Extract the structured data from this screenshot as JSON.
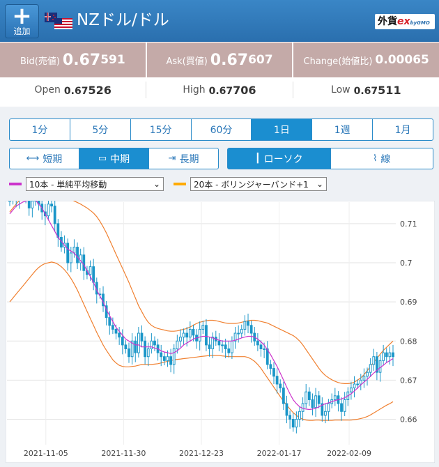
{
  "header": {
    "add_icon": "plus-icon",
    "add_label": "追加",
    "flags": [
      "nz-flag-icon",
      "us-flag-icon"
    ],
    "pair_title": "NZドル/ドル",
    "logo_main": "外貨",
    "logo_ex": "ex",
    "logo_gmo": "byGMO"
  },
  "quotes": {
    "bid_label": "Bid(売値)",
    "bid_big": "0.67",
    "bid_small": "591",
    "ask_label": "Ask(買値)",
    "ask_big": "0.67",
    "ask_small": "607",
    "change_label": "Change(始値比)",
    "change_value": "0.00065"
  },
  "ohl": {
    "open_label": "Open",
    "open_a": "0.67",
    "open_b": "526",
    "high_label": "High",
    "high_a": "0.67",
    "high_b": "706",
    "low_label": "Low",
    "low_a": "0.67",
    "low_b": "511"
  },
  "timeframes": [
    "1分",
    "5分",
    "15分",
    "60分",
    "1日",
    "1週",
    "1月"
  ],
  "selected_timeframe": "1日",
  "periods": [
    "短期",
    "中期",
    "長期"
  ],
  "selected_period": "中期",
  "chart_types": [
    "ローソク",
    "線"
  ],
  "selected_chart_type": "ローソク",
  "indicators": {
    "ma": {
      "label": "10本 - 単純平均移動",
      "color": "#cc33cc"
    },
    "bb": {
      "label": "20本 - ボリンジャーバンド+1",
      "color": "#ffaa00"
    }
  },
  "colors": {
    "accent": "#1b8ed0",
    "header": "#2a6fae",
    "quote_bg": "#c4aaa8",
    "candle": "#1b96c8",
    "bb_band": "#f08030",
    "ma": "#cc33cc"
  },
  "chart_data": {
    "type": "candlestick",
    "y_ticks": [
      "0.71",
      "0.7",
      "0.69",
      "0.68",
      "0.67",
      "0.66"
    ],
    "x_ticks": [
      "2021-11-05",
      "2021-11-30",
      "2021-12-23",
      "2022-01-17",
      "2022-02-09"
    ],
    "ylim": [
      0.6535,
      0.7155
    ],
    "close": [
      0.7165,
      0.717,
      0.7162,
      0.7175,
      0.718,
      0.7168,
      0.714,
      0.7158,
      0.717,
      0.715,
      0.713,
      0.712,
      0.715,
      0.7145,
      0.71,
      0.7065,
      0.704,
      0.705,
      0.7,
      0.7025,
      0.704,
      0.7,
      0.702,
      0.698,
      0.697,
      0.699,
      0.695,
      0.692,
      0.692,
      0.689,
      0.686,
      0.684,
      0.683,
      0.682,
      0.681,
      0.679,
      0.678,
      0.676,
      0.68,
      0.677,
      0.682,
      0.68,
      0.676,
      0.678,
      0.68,
      0.679,
      0.677,
      0.676,
      0.675,
      0.676,
      0.674,
      0.678,
      0.68,
      0.681,
      0.682,
      0.681,
      0.683,
      0.6815,
      0.68,
      0.683,
      0.684,
      0.679,
      0.678,
      0.681,
      0.68,
      0.679,
      0.679,
      0.678,
      0.677,
      0.68,
      0.682,
      0.682,
      0.683,
      0.685,
      0.684,
      0.682,
      0.68,
      0.679,
      0.678,
      0.678,
      0.674,
      0.673,
      0.671,
      0.669,
      0.668,
      0.664,
      0.661,
      0.66,
      0.658,
      0.66,
      0.662,
      0.664,
      0.667,
      0.665,
      0.663,
      0.666,
      0.664,
      0.661,
      0.662,
      0.664,
      0.665,
      0.666,
      0.664,
      0.662,
      0.665,
      0.667,
      0.668,
      0.669,
      0.669,
      0.67,
      0.671,
      0.672,
      0.674,
      0.676,
      0.672,
      0.675,
      0.677,
      0.676,
      0.677,
      0.676
    ],
    "ma10": [
      0.7125,
      0.7135,
      0.7145,
      0.715,
      0.7155,
      0.7158,
      0.716,
      0.716,
      0.716,
      0.715,
      0.714,
      0.7125,
      0.711,
      0.7095,
      0.708,
      0.7065,
      0.7055,
      0.7045,
      0.7035,
      0.703,
      0.7025,
      0.7015,
      0.7005,
      0.6995,
      0.698,
      0.6965,
      0.695,
      0.693,
      0.6915,
      0.69,
      0.688,
      0.6865,
      0.685,
      0.6835,
      0.6825,
      0.6815,
      0.6805,
      0.68,
      0.6795,
      0.679,
      0.679,
      0.6785,
      0.6785,
      0.6785,
      0.6785,
      0.6782,
      0.678,
      0.6775,
      0.6772,
      0.677,
      0.6768,
      0.677,
      0.6775,
      0.6782,
      0.679,
      0.6795,
      0.68,
      0.6805,
      0.6808,
      0.681,
      0.6812,
      0.6812,
      0.681,
      0.6808,
      0.6805,
      0.6802,
      0.68,
      0.68,
      0.68,
      0.68,
      0.6802,
      0.6805,
      0.6808,
      0.681,
      0.6812,
      0.6812,
      0.681,
      0.6805,
      0.6798,
      0.679,
      0.6778,
      0.6765,
      0.675,
      0.6735,
      0.6718,
      0.67,
      0.6682,
      0.6665,
      0.665,
      0.664,
      0.6632,
      0.6628,
      0.6626,
      0.6625,
      0.6626,
      0.6628,
      0.6632,
      0.6636,
      0.664,
      0.6642,
      0.6645,
      0.6648,
      0.665,
      0.6652,
      0.6655,
      0.666,
      0.6665,
      0.6672,
      0.668,
      0.6688,
      0.6695,
      0.6702,
      0.671,
      0.6718,
      0.6725,
      0.6732,
      0.6738,
      0.6745,
      0.675,
      0.6755
    ],
    "bb_upper": [
      0.713,
      0.714,
      0.715,
      0.716,
      0.7165,
      0.717,
      0.7175,
      0.7178,
      0.718,
      0.718,
      0.718,
      0.7178,
      0.7176,
      0.7174,
      0.7172,
      0.717,
      0.7168,
      0.7166,
      0.7164,
      0.7162,
      0.7158,
      0.7154,
      0.715,
      0.7145,
      0.714,
      0.7134,
      0.7127,
      0.7118,
      0.7106,
      0.7092,
      0.7076,
      0.7058,
      0.704,
      0.7022,
      0.7004,
      0.6986,
      0.6968,
      0.695,
      0.693,
      0.691,
      0.689,
      0.6875,
      0.686,
      0.6848,
      0.684,
      0.6835,
      0.6832,
      0.683,
      0.6828,
      0.6826,
      0.6825,
      0.6825,
      0.6826,
      0.6828,
      0.683,
      0.6832,
      0.6836,
      0.684,
      0.6845,
      0.6848,
      0.685,
      0.6852,
      0.6853,
      0.6853,
      0.6852,
      0.685,
      0.6848,
      0.6846,
      0.6845,
      0.6845,
      0.6845,
      0.6846,
      0.6848,
      0.685,
      0.6852,
      0.6853,
      0.6853,
      0.6852,
      0.685,
      0.6848,
      0.6846,
      0.6842,
      0.6838,
      0.6834,
      0.683,
      0.6826,
      0.6822,
      0.6818,
      0.6814,
      0.6808,
      0.68,
      0.679,
      0.6778,
      0.6766,
      0.6754,
      0.6742,
      0.673,
      0.672,
      0.6712,
      0.6706,
      0.6701,
      0.6697,
      0.6694,
      0.6692,
      0.6691,
      0.6691,
      0.6692,
      0.6695,
      0.67,
      0.6706,
      0.6714,
      0.6724,
      0.6735,
      0.6746,
      0.6756,
      0.6766,
      0.6776,
      0.6784,
      0.6792,
      0.68
    ],
    "bb_lower": [
      0.69,
      0.691,
      0.692,
      0.693,
      0.694,
      0.695,
      0.696,
      0.697,
      0.698,
      0.6988,
      0.6994,
      0.6998,
      0.7,
      0.7002,
      0.7,
      0.6996,
      0.699,
      0.6982,
      0.6972,
      0.696,
      0.6946,
      0.693,
      0.6912,
      0.6894,
      0.6876,
      0.6858,
      0.684,
      0.6822,
      0.6806,
      0.679,
      0.6776,
      0.6764,
      0.6752,
      0.6744,
      0.6738,
      0.6735,
      0.6734,
      0.6734,
      0.6735,
      0.6736,
      0.6738,
      0.674,
      0.674,
      0.674,
      0.674,
      0.6741,
      0.6742,
      0.6744,
      0.6746,
      0.6748,
      0.675,
      0.6752,
      0.6753,
      0.6754,
      0.6755,
      0.6756,
      0.6757,
      0.6758,
      0.6759,
      0.676,
      0.6761,
      0.6762,
      0.6763,
      0.6763,
      0.6763,
      0.6763,
      0.6762,
      0.6761,
      0.676,
      0.676,
      0.676,
      0.676,
      0.676,
      0.676,
      0.6758,
      0.6754,
      0.6748,
      0.674,
      0.673,
      0.6718,
      0.6706,
      0.6694,
      0.6682,
      0.667,
      0.6658,
      0.6646,
      0.6636,
      0.6626,
      0.6617,
      0.661,
      0.6604,
      0.66,
      0.6598,
      0.6597,
      0.6597,
      0.6598,
      0.6598,
      0.6597,
      0.6597,
      0.6597,
      0.6597,
      0.6598,
      0.6598,
      0.6598,
      0.6598,
      0.6598,
      0.6598,
      0.6599,
      0.66,
      0.6602,
      0.6604,
      0.6607,
      0.6611,
      0.6616,
      0.6621,
      0.6626,
      0.6631,
      0.6636,
      0.664,
      0.6645
    ]
  }
}
